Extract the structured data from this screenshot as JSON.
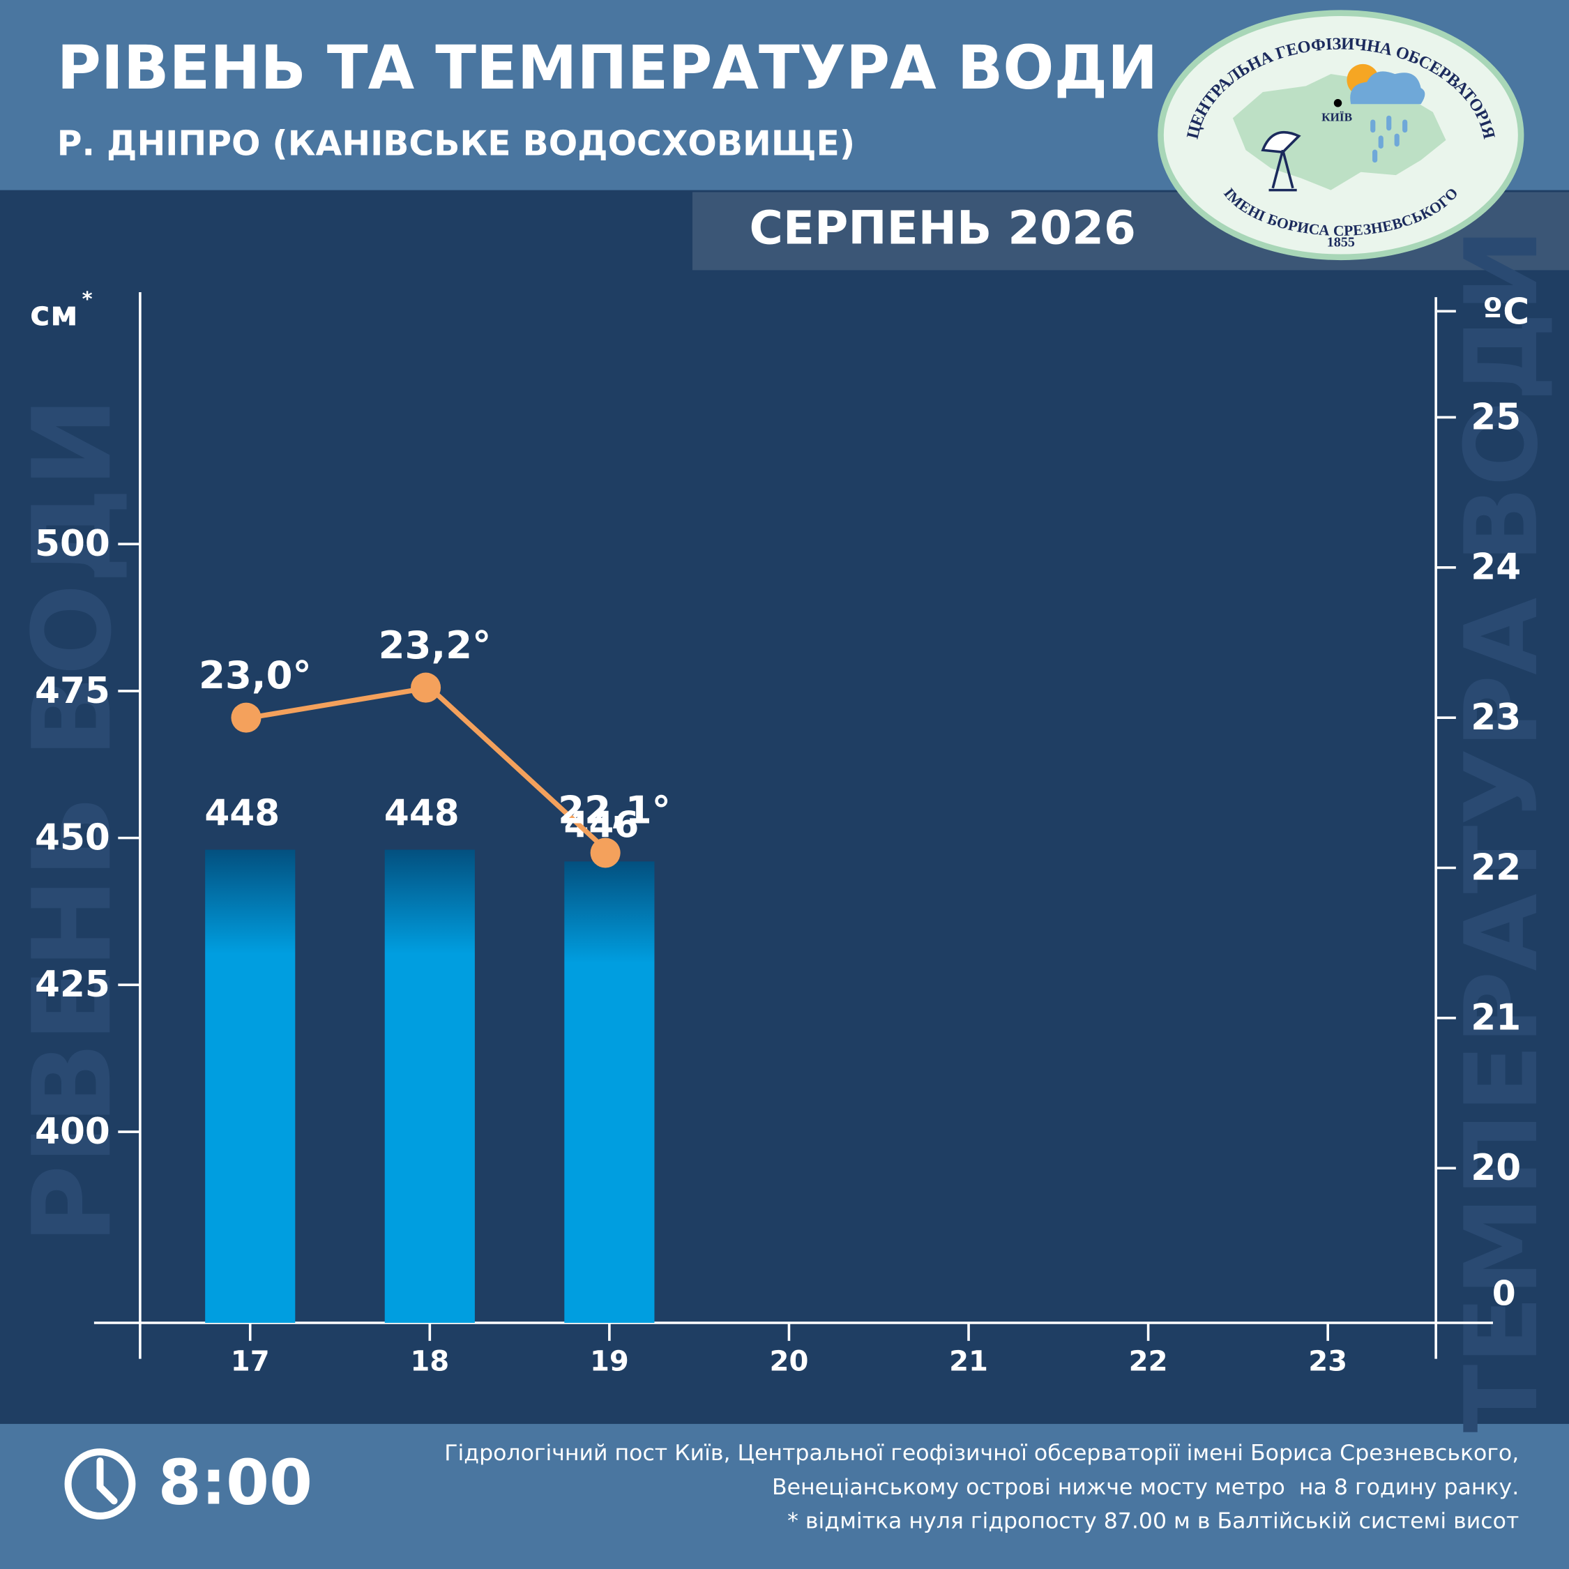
{
  "chart_data": {
    "type": "bar",
    "title": "РІВЕНЬ ТА ТЕМПЕРАТУРА ВОДИ",
    "subtitle": "Р. ДНІПРО (КАНІВСЬКЕ ВОДОСХОВИЩЕ)",
    "period": "СЕРПЕНЬ 2026",
    "y_label": "РІВЕНЬ ВОДИ",
    "y2_label": "ТЕМПЕРАТУРА ВОДИ",
    "y_unit": "см",
    "y_unit_note": "*",
    "y2_unit": "ºC",
    "y2_break_label": "0",
    "categories": [
      "17",
      "18",
      "19",
      "20",
      "21",
      "22",
      "23"
    ],
    "series": [
      {
        "name": "Рівень води",
        "type": "bar",
        "color": "#009ee0",
        "values": [
          448,
          448,
          446,
          null,
          null,
          null,
          null
        ]
      },
      {
        "name": "Температура води",
        "type": "line",
        "axis": "y2",
        "color": "#f4a15c",
        "values": [
          23.0,
          23.2,
          22.1,
          null,
          null,
          null,
          null
        ],
        "value_labels": [
          "23,0°",
          "23,2°",
          "22,1°",
          null,
          null,
          null,
          null
        ]
      }
    ],
    "ylim": [
      367.5,
      542
    ],
    "yticks": [
      400,
      425,
      450,
      475,
      500
    ],
    "y2lim": [
      18.97,
      25.8
    ],
    "y2ticks": [
      20,
      21,
      22,
      23,
      24,
      25
    ]
  },
  "time": "8:00",
  "footer_notes": [
    "Гідрологічний пост Київ, Центральної геофізичної обсерваторії імені Бориса Срезневського,",
    "Венеціанському острові нижче мосту метро  на 8 годину ранку.",
    "* відмітка нуля гідропосту 87.00 м в Балтійській системі висот"
  ],
  "logo": {
    "top_text": "ЦЕНТРАЛЬНА ГЕОФІЗИЧНА ОБСЕРВАТОРІЯ",
    "bottom_text": "ІМЕНІ БОРИСА СРЕЗНЕВСЬКОГО",
    "year": "1855",
    "city": "КИЇВ"
  }
}
